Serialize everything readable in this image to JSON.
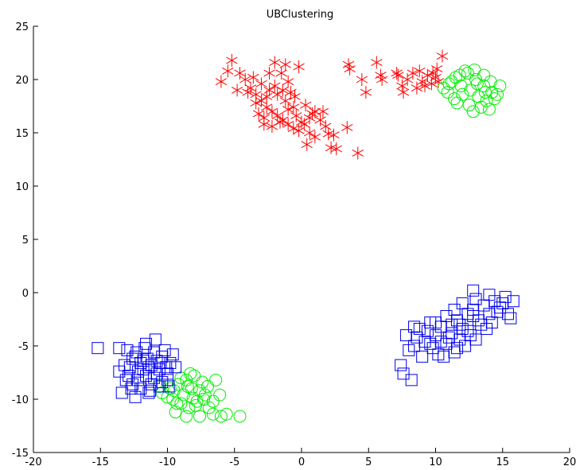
{
  "chart_data": {
    "type": "scatter",
    "title": "UBClustering",
    "xlabel": "",
    "ylabel": "",
    "xlim": [
      -20,
      20
    ],
    "ylim": [
      -15,
      25
    ],
    "xticks": [
      "-20",
      "-15",
      "-10",
      "-5",
      "0",
      "5",
      "10",
      "15",
      "20"
    ],
    "yticks": [
      "-15",
      "-10",
      "-5",
      "0",
      "5",
      "10",
      "15",
      "20",
      "25"
    ],
    "grid": false,
    "legend": "none",
    "series": [
      {
        "marker": "asterisk",
        "color": "#ff0000",
        "points": [
          [
            -5.2,
            21.8
          ],
          [
            -4.6,
            20.6
          ],
          [
            -4.2,
            20.0
          ],
          [
            -3.8,
            19.2
          ],
          [
            -3.4,
            18.6
          ],
          [
            -3.0,
            18.0
          ],
          [
            -2.6,
            17.4
          ],
          [
            -2.2,
            17.0
          ],
          [
            -1.8,
            16.6
          ],
          [
            -1.4,
            16.2
          ],
          [
            -1.0,
            15.8
          ],
          [
            -0.6,
            15.4
          ],
          [
            -0.2,
            15.2
          ],
          [
            0.2,
            15.8
          ],
          [
            0.6,
            16.4
          ],
          [
            1.0,
            17.0
          ],
          [
            1.4,
            16.2
          ],
          [
            1.8,
            15.6
          ],
          [
            -3.6,
            20.2
          ],
          [
            -3.0,
            19.6
          ],
          [
            -2.4,
            19.0
          ],
          [
            -1.8,
            18.6
          ],
          [
            -1.2,
            18.0
          ],
          [
            -0.6,
            17.4
          ],
          [
            -2.0,
            21.6
          ],
          [
            -1.5,
            20.6
          ],
          [
            -1.0,
            19.8
          ],
          [
            -0.5,
            18.4
          ],
          [
            0.3,
            17.6
          ],
          [
            0.8,
            16.8
          ],
          [
            -2.8,
            16.4
          ],
          [
            -2.2,
            15.6
          ],
          [
            -1.6,
            16.0
          ],
          [
            -1.0,
            17.2
          ],
          [
            -0.4,
            16.6
          ],
          [
            0.0,
            16.0
          ],
          [
            -4.0,
            18.8
          ],
          [
            -3.4,
            17.8
          ],
          [
            -2.6,
            18.4
          ],
          [
            -2.0,
            19.4
          ],
          [
            -1.4,
            19.0
          ],
          [
            -0.8,
            18.8
          ],
          [
            -6.0,
            19.8
          ],
          [
            -5.5,
            20.8
          ],
          [
            -3.2,
            16.8
          ],
          [
            -2.8,
            15.8
          ],
          [
            0.4,
            13.9
          ],
          [
            1.0,
            14.6
          ],
          [
            2.0,
            14.9
          ],
          [
            2.2,
            13.6
          ],
          [
            2.6,
            13.5
          ],
          [
            3.4,
            15.5
          ],
          [
            4.2,
            13.1
          ],
          [
            -1.2,
            21.4
          ],
          [
            -0.2,
            21.2
          ],
          [
            0.6,
            15.0
          ],
          [
            1.6,
            17.0
          ],
          [
            2.4,
            14.8
          ],
          [
            -4.8,
            19.0
          ],
          [
            -2.4,
            20.6
          ],
          [
            3.5,
            21.4
          ],
          [
            3.6,
            21.0
          ],
          [
            4.5,
            20.0
          ],
          [
            4.8,
            18.8
          ],
          [
            5.6,
            21.6
          ],
          [
            5.9,
            20.4
          ],
          [
            6.0,
            20.0
          ],
          [
            7.1,
            20.6
          ],
          [
            7.2,
            20.4
          ],
          [
            7.5,
            19.4
          ],
          [
            7.9,
            20.0
          ],
          [
            8.3,
            20.6
          ],
          [
            8.6,
            19.2
          ],
          [
            9.0,
            19.8
          ],
          [
            9.4,
            20.4
          ],
          [
            9.7,
            19.6
          ],
          [
            10.0,
            20.2
          ],
          [
            10.2,
            19.8
          ],
          [
            10.5,
            22.2
          ],
          [
            9.8,
            20.6
          ],
          [
            9.2,
            19.4
          ],
          [
            10.1,
            21.0
          ],
          [
            8.8,
            20.8
          ],
          [
            7.6,
            18.8
          ]
        ]
      },
      {
        "marker": "circle",
        "color": "#00ee00",
        "points": [
          [
            10.6,
            19.2
          ],
          [
            11.2,
            19.8
          ],
          [
            11.8,
            20.4
          ],
          [
            12.4,
            20.6
          ],
          [
            13.0,
            20.0
          ],
          [
            13.6,
            19.4
          ],
          [
            14.2,
            18.8
          ],
          [
            14.8,
            19.4
          ],
          [
            11.4,
            18.2
          ],
          [
            12.0,
            18.6
          ],
          [
            12.6,
            19.0
          ],
          [
            13.2,
            18.4
          ],
          [
            13.8,
            18.0
          ],
          [
            14.4,
            18.2
          ],
          [
            12.8,
            17.0
          ],
          [
            13.4,
            17.4
          ],
          [
            12.2,
            20.8
          ],
          [
            13.6,
            20.4
          ],
          [
            11.6,
            17.8
          ],
          [
            14.0,
            17.2
          ],
          [
            12.9,
            20.9
          ],
          [
            11.0,
            19.6
          ],
          [
            11.9,
            19.4
          ],
          [
            13.1,
            19.6
          ],
          [
            14.6,
            18.6
          ],
          [
            10.9,
            18.8
          ],
          [
            12.5,
            17.6
          ],
          [
            13.7,
            18.8
          ],
          [
            11.5,
            20.2
          ],
          [
            14.1,
            19.8
          ],
          [
            -10.4,
            -9.4
          ],
          [
            -9.8,
            -9.0
          ],
          [
            -9.2,
            -8.6
          ],
          [
            -8.6,
            -8.2
          ],
          [
            -8.0,
            -7.8
          ],
          [
            -7.4,
            -8.4
          ],
          [
            -9.6,
            -10.0
          ],
          [
            -9.0,
            -10.4
          ],
          [
            -8.4,
            -10.8
          ],
          [
            -7.8,
            -10.2
          ],
          [
            -7.2,
            -9.6
          ],
          [
            -6.6,
            -10.2
          ],
          [
            -9.4,
            -11.2
          ],
          [
            -8.6,
            -11.6
          ],
          [
            -7.6,
            -11.6
          ],
          [
            -6.6,
            -11.4
          ],
          [
            -6.0,
            -11.6
          ],
          [
            -4.6,
            -11.6
          ],
          [
            -8.2,
            -9.0
          ],
          [
            -7.0,
            -8.8
          ],
          [
            -6.4,
            -8.2
          ],
          [
            -8.8,
            -9.6
          ],
          [
            -7.6,
            -9.2
          ],
          [
            -10.0,
            -9.8
          ],
          [
            -9.0,
            -8.0
          ],
          [
            -8.3,
            -7.6
          ],
          [
            -6.9,
            -10.8
          ],
          [
            -7.9,
            -10.6
          ],
          [
            -10.6,
            -8.8
          ],
          [
            -9.5,
            -9.2
          ],
          [
            -8.5,
            -8.8
          ],
          [
            -7.3,
            -10.0
          ],
          [
            -6.1,
            -9.6
          ],
          [
            -5.6,
            -11.4
          ],
          [
            -8.1,
            -9.9
          ],
          [
            -9.3,
            -10.4
          ]
        ]
      },
      {
        "marker": "square",
        "color": "#0000ee",
        "points": [
          [
            -15.2,
            -5.2
          ],
          [
            -13.6,
            -5.2
          ],
          [
            -13.0,
            -5.4
          ],
          [
            -12.4,
            -6.0
          ],
          [
            -11.8,
            -6.4
          ],
          [
            -11.2,
            -6.8
          ],
          [
            -10.6,
            -7.2
          ],
          [
            -10.0,
            -7.6
          ],
          [
            -12.8,
            -7.0
          ],
          [
            -12.2,
            -7.4
          ],
          [
            -11.6,
            -7.8
          ],
          [
            -11.0,
            -8.0
          ],
          [
            -10.4,
            -8.4
          ],
          [
            -12.6,
            -8.6
          ],
          [
            -12.0,
            -9.0
          ],
          [
            -11.4,
            -9.4
          ],
          [
            -13.4,
            -9.4
          ],
          [
            -12.4,
            -9.8
          ],
          [
            -11.6,
            -4.8
          ],
          [
            -11.0,
            -5.6
          ],
          [
            -10.4,
            -6.0
          ],
          [
            -9.8,
            -6.6
          ],
          [
            -9.4,
            -7.0
          ],
          [
            -10.8,
            -6.4
          ],
          [
            -11.4,
            -7.0
          ],
          [
            -12.0,
            -6.6
          ],
          [
            -12.6,
            -6.2
          ],
          [
            -13.2,
            -6.8
          ],
          [
            -10.2,
            -5.4
          ],
          [
            -9.6,
            -5.8
          ],
          [
            -11.2,
            -8.6
          ],
          [
            -10.6,
            -8.8
          ],
          [
            -12.2,
            -8.2
          ],
          [
            -11.8,
            -7.2
          ],
          [
            -10.8,
            -7.6
          ],
          [
            -10.0,
            -8.2
          ],
          [
            -12.9,
            -7.8
          ],
          [
            -13.6,
            -7.4
          ],
          [
            -11.5,
            -6.2
          ],
          [
            -10.9,
            -4.4
          ],
          [
            -11.7,
            -5.2
          ],
          [
            -10.1,
            -7.0
          ],
          [
            -12.3,
            -5.6
          ],
          [
            -9.9,
            -8.8
          ],
          [
            -11.3,
            -9.2
          ],
          [
            -12.7,
            -9.0
          ],
          [
            -13.1,
            -8.2
          ],
          [
            -10.5,
            -6.6
          ],
          [
            7.4,
            -6.8
          ],
          [
            7.6,
            -7.6
          ],
          [
            7.8,
            -4.0
          ],
          [
            8.0,
            -5.4
          ],
          [
            8.2,
            -8.2
          ],
          [
            8.4,
            -5.0
          ],
          [
            8.8,
            -3.4
          ],
          [
            9.2,
            -4.6
          ],
          [
            9.6,
            -2.8
          ],
          [
            10.0,
            -4.0
          ],
          [
            10.4,
            -3.2
          ],
          [
            10.8,
            -4.8
          ],
          [
            11.2,
            -3.8
          ],
          [
            11.6,
            -2.6
          ],
          [
            12.0,
            -3.4
          ],
          [
            12.4,
            -2.0
          ],
          [
            12.8,
            -1.6
          ],
          [
            13.2,
            -2.6
          ],
          [
            13.6,
            -1.2
          ],
          [
            14.0,
            -2.0
          ],
          [
            14.4,
            -0.8
          ],
          [
            14.8,
            -1.4
          ],
          [
            15.2,
            -0.4
          ],
          [
            15.6,
            -2.4
          ],
          [
            15.8,
            -0.8
          ],
          [
            12.8,
            0.2
          ],
          [
            13.0,
            -0.6
          ],
          [
            10.2,
            -5.8
          ],
          [
            9.8,
            -5.2
          ],
          [
            10.6,
            -6.0
          ],
          [
            11.4,
            -5.6
          ],
          [
            11.8,
            -4.4
          ],
          [
            12.2,
            -5.0
          ],
          [
            11.0,
            -4.2
          ],
          [
            9.4,
            -3.6
          ],
          [
            8.6,
            -4.2
          ],
          [
            13.8,
            -3.4
          ],
          [
            14.2,
            -2.8
          ],
          [
            12.6,
            -4.0
          ],
          [
            13.4,
            -3.0
          ],
          [
            11.2,
            -3.0
          ],
          [
            10.8,
            -2.2
          ],
          [
            12.0,
            -1.0
          ],
          [
            14.6,
            -1.8
          ],
          [
            15.4,
            -2.0
          ],
          [
            9.0,
            -6.0
          ],
          [
            10.4,
            -4.6
          ],
          [
            11.6,
            -5.2
          ],
          [
            12.4,
            -3.6
          ],
          [
            13.0,
            -4.4
          ],
          [
            11.4,
            -1.6
          ],
          [
            9.6,
            -4.8
          ],
          [
            8.4,
            -3.2
          ],
          [
            14.0,
            -0.2
          ],
          [
            15.0,
            -1.0
          ],
          [
            12.8,
            -2.2
          ],
          [
            10.0,
            -2.8
          ],
          [
            11.8,
            -3.0
          ]
        ]
      }
    ]
  }
}
